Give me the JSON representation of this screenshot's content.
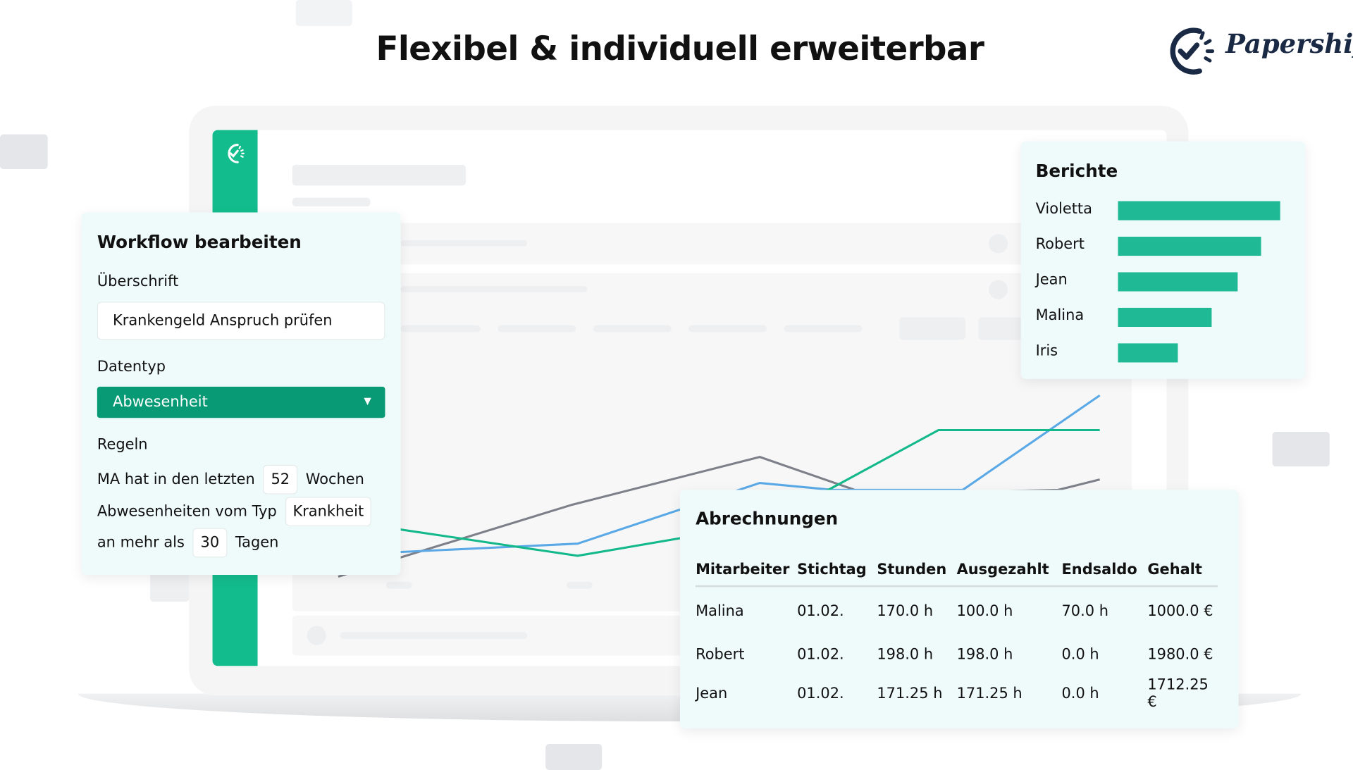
{
  "header": {
    "title": "Flexibel & individuell erweiterbar",
    "logo_text": "Papershift"
  },
  "colors": {
    "brand": "#13bc8c",
    "dropdown": "#079a74",
    "bar": "#20b996",
    "line_gray": "#7d8089",
    "line_blue": "#5aa9e6",
    "line_green": "#13b98b",
    "logo": "#1b2a44"
  },
  "workflow": {
    "title": "Workflow bearbeiten",
    "heading_label": "Überschrift",
    "heading_value": "Krankengeld Anspruch prüfen",
    "datatype_label": "Datentyp",
    "datatype_value": "Abwesenheit",
    "rules_label": "Regeln",
    "rule1": {
      "pre": "MA hat in den letzten",
      "value": "52",
      "post": "Wochen"
    },
    "rule2": {
      "pre": "Abwesenheiten vom Typ",
      "value": "Krankheit"
    },
    "rule3": {
      "pre": "an mehr als",
      "value": "30",
      "post": "Tagen"
    }
  },
  "reports": {
    "title": "Berichte",
    "items": [
      {
        "name": "Violetta",
        "value": 100
      },
      {
        "name": "Robert",
        "value": 88
      },
      {
        "name": "Jean",
        "value": 74
      },
      {
        "name": "Malina",
        "value": 58
      },
      {
        "name": "Iris",
        "value": 37
      }
    ]
  },
  "payroll": {
    "title": "Abrechnungen",
    "columns": [
      "Mitarbeiter",
      "Stichtag",
      "Stunden",
      "Ausgezahlt",
      "Endsaldo",
      "Gehalt"
    ],
    "rows": [
      [
        "Malina",
        "01.02.",
        "170.0 h",
        "100.0 h",
        "70.0 h",
        "1000.0 €"
      ],
      [
        "Robert",
        "01.02.",
        "198.0 h",
        "198.0 h",
        "0.0 h",
        "1980.0 €"
      ],
      [
        "Jean",
        "01.02.",
        "171.25 h",
        "171.25 h",
        "0.0 h",
        "1712.25 €"
      ]
    ]
  }
}
